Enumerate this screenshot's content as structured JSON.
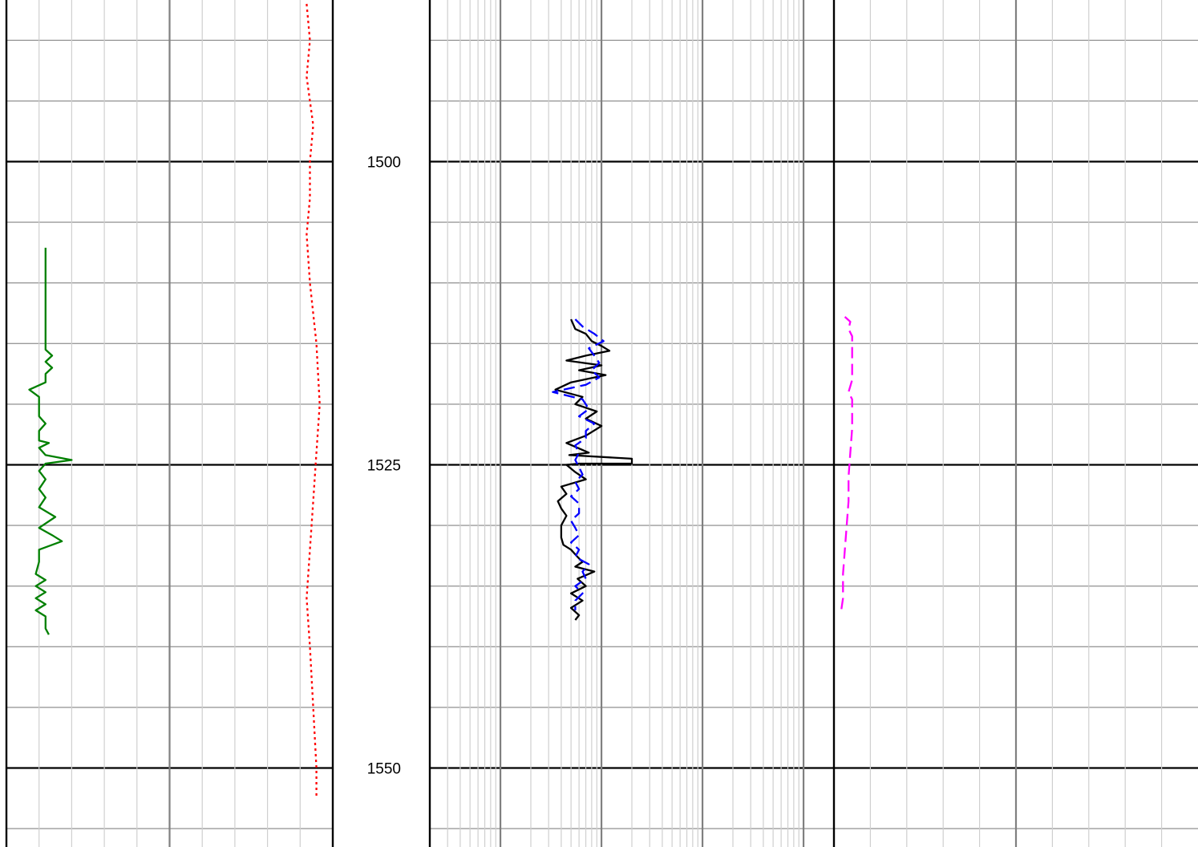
{
  "chart_data": {
    "type": "line",
    "title": "",
    "depth_axis": {
      "range": [
        1487,
        1560
      ],
      "labeled_ticks": [
        1500,
        1525,
        1550
      ],
      "tick_labels": [
        "1500",
        "1525",
        "1550"
      ],
      "major_step": 25,
      "minor_step": 5,
      "grid": true
    },
    "tracks": [
      {
        "name": "track-1",
        "scale": "linear",
        "series": [
          {
            "color": "#008000",
            "style": "solid",
            "points": [
              [
                0.12,
                1507.1
              ],
              [
                0.12,
                1507.5
              ],
              [
                0.12,
                1515.5
              ],
              [
                0.14,
                1516.0
              ],
              [
                0.12,
                1516.5
              ],
              [
                0.14,
                1517.0
              ],
              [
                0.12,
                1517.5
              ],
              [
                0.12,
                1518.2
              ],
              [
                0.07,
                1518.8
              ],
              [
                0.1,
                1519.4
              ],
              [
                0.1,
                1520.0
              ],
              [
                0.1,
                1521.0
              ],
              [
                0.12,
                1521.6
              ],
              [
                0.1,
                1522.2
              ],
              [
                0.1,
                1523.0
              ],
              [
                0.13,
                1523.2
              ],
              [
                0.1,
                1523.6
              ],
              [
                0.12,
                1524.2
              ],
              [
                0.2,
                1524.6
              ],
              [
                0.12,
                1524.9
              ],
              [
                0.1,
                1525.5
              ],
              [
                0.12,
                1526.2
              ],
              [
                0.1,
                1527.0
              ],
              [
                0.12,
                1527.7
              ],
              [
                0.1,
                1528.5
              ],
              [
                0.15,
                1529.3
              ],
              [
                0.1,
                1530.2
              ],
              [
                0.14,
                1530.8
              ],
              [
                0.17,
                1531.3
              ],
              [
                0.1,
                1532.0
              ],
              [
                0.1,
                1533.0
              ],
              [
                0.09,
                1534.0
              ],
              [
                0.12,
                1534.5
              ],
              [
                0.09,
                1535.0
              ],
              [
                0.12,
                1535.5
              ],
              [
                0.09,
                1536.0
              ],
              [
                0.12,
                1536.5
              ],
              [
                0.09,
                1537.0
              ],
              [
                0.12,
                1537.5
              ],
              [
                0.12,
                1538.5
              ],
              [
                0.13,
                1539.0
              ]
            ]
          },
          {
            "color": "#ff0000",
            "style": "dotted",
            "points": [
              [
                0.92,
                1487
              ],
              [
                0.93,
                1490
              ],
              [
                0.92,
                1493
              ],
              [
                0.94,
                1497
              ],
              [
                0.93,
                1500
              ],
              [
                0.93,
                1503
              ],
              [
                0.92,
                1506
              ],
              [
                0.93,
                1510
              ],
              [
                0.95,
                1515
              ],
              [
                0.96,
                1520
              ],
              [
                0.95,
                1524
              ],
              [
                0.94,
                1528
              ],
              [
                0.93,
                1532
              ],
              [
                0.92,
                1536
              ],
              [
                0.93,
                1540
              ],
              [
                0.94,
                1545
              ],
              [
                0.95,
                1550
              ],
              [
                0.95,
                1552.5
              ]
            ]
          }
        ]
      },
      {
        "name": "track-2",
        "scale": "log",
        "range": [
          0.2,
          2000
        ],
        "series": [
          {
            "color": "#000000",
            "style": "solid",
            "points": [
              [
                5.0,
                1513.0
              ],
              [
                5.5,
                1513.8
              ],
              [
                7.0,
                1514.2
              ],
              [
                8.0,
                1514.8
              ],
              [
                10.0,
                1515.2
              ],
              [
                12.0,
                1515.6
              ],
              [
                7.0,
                1516.0
              ],
              [
                4.5,
                1516.4
              ],
              [
                10.0,
                1516.8
              ],
              [
                6.0,
                1517.2
              ],
              [
                11.0,
                1517.6
              ],
              [
                5.0,
                1518.2
              ],
              [
                3.5,
                1518.8
              ],
              [
                6.5,
                1519.4
              ],
              [
                5.5,
                1520.0
              ],
              [
                9.0,
                1520.6
              ],
              [
                7.0,
                1521.2
              ],
              [
                10.0,
                1521.8
              ],
              [
                7.0,
                1522.6
              ],
              [
                4.5,
                1523.2
              ],
              [
                5.8,
                1523.6
              ],
              [
                7.5,
                1524.0
              ],
              [
                4.8,
                1524.2
              ],
              [
                20.0,
                1524.5
              ],
              [
                20.0,
                1524.9
              ],
              [
                6.0,
                1524.9
              ],
              [
                4.5,
                1525.0
              ],
              [
                5.5,
                1525.6
              ],
              [
                7.0,
                1526.2
              ],
              [
                4.0,
                1526.8
              ],
              [
                4.5,
                1527.4
              ],
              [
                3.7,
                1528.0
              ],
              [
                4.0,
                1528.6
              ],
              [
                4.5,
                1529.2
              ],
              [
                4.0,
                1530.0
              ],
              [
                4.0,
                1531.0
              ],
              [
                4.2,
                1531.6
              ],
              [
                5.0,
                1532.0
              ],
              [
                5.8,
                1532.6
              ],
              [
                6.5,
                1533.0
              ],
              [
                5.5,
                1533.4
              ],
              [
                8.5,
                1533.8
              ],
              [
                5.8,
                1534.4
              ],
              [
                7.0,
                1535.0
              ],
              [
                5.0,
                1535.6
              ],
              [
                6.5,
                1536.2
              ],
              [
                5.0,
                1536.8
              ],
              [
                6.0,
                1537.4
              ],
              [
                5.5,
                1537.8
              ]
            ]
          },
          {
            "color": "#0000ff",
            "style": "dashed",
            "points": [
              [
                5.5,
                1513.0
              ],
              [
                6.5,
                1513.6
              ],
              [
                8.5,
                1514.2
              ],
              [
                10.5,
                1514.8
              ],
              [
                7.5,
                1515.4
              ],
              [
                8.5,
                1516.0
              ],
              [
                9.5,
                1516.6
              ],
              [
                8.0,
                1517.2
              ],
              [
                9.5,
                1517.8
              ],
              [
                7.0,
                1518.4
              ],
              [
                3.3,
                1519.0
              ],
              [
                6.5,
                1519.6
              ],
              [
                7.5,
                1520.4
              ],
              [
                6.0,
                1521.0
              ],
              [
                8.5,
                1521.6
              ],
              [
                7.0,
                1522.2
              ],
              [
                7.0,
                1522.8
              ],
              [
                5.5,
                1523.4
              ],
              [
                6.0,
                1524.0
              ],
              [
                5.5,
                1524.6
              ],
              [
                6.0,
                1525.2
              ],
              [
                6.5,
                1525.8
              ],
              [
                5.5,
                1526.4
              ],
              [
                6.0,
                1527.0
              ],
              [
                5.0,
                1527.6
              ],
              [
                6.0,
                1528.2
              ],
              [
                6.0,
                1529.0
              ],
              [
                5.0,
                1529.6
              ],
              [
                5.5,
                1530.2
              ],
              [
                6.0,
                1530.8
              ],
              [
                5.0,
                1531.4
              ],
              [
                6.0,
                1532.0
              ],
              [
                5.5,
                1532.6
              ],
              [
                7.5,
                1533.2
              ],
              [
                6.5,
                1533.8
              ],
              [
                7.0,
                1534.4
              ],
              [
                5.5,
                1535.0
              ],
              [
                6.5,
                1535.6
              ],
              [
                5.5,
                1536.2
              ],
              [
                5.5,
                1537.0
              ]
            ]
          }
        ]
      },
      {
        "name": "track-3",
        "scale": "linear",
        "series": [
          {
            "color": "#ff00ff",
            "style": "dashed",
            "points": [
              [
                0.03,
                1512.8
              ],
              [
                0.045,
                1513.2
              ],
              [
                0.04,
                1513.8
              ],
              [
                0.05,
                1514.4
              ],
              [
                0.05,
                1516.0
              ],
              [
                0.05,
                1518.0
              ],
              [
                0.04,
                1519.0
              ],
              [
                0.05,
                1519.6
              ],
              [
                0.05,
                1522.0
              ],
              [
                0.045,
                1524.0
              ],
              [
                0.04,
                1526.0
              ],
              [
                0.04,
                1528.0
              ],
              [
                0.035,
                1530.0
              ],
              [
                0.03,
                1532.0
              ],
              [
                0.025,
                1534.0
              ],
              [
                0.025,
                1536.0
              ],
              [
                0.02,
                1537.0
              ]
            ]
          }
        ]
      }
    ]
  }
}
